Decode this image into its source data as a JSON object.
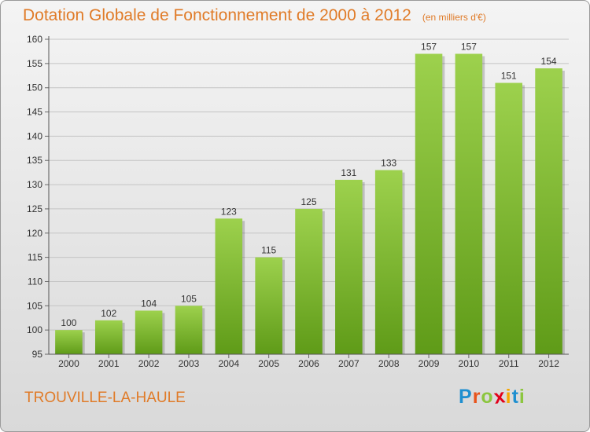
{
  "header": {
    "title": "Dotation Globale de Fonctionnement de 2000 à 2012",
    "unit": "(en milliers d'€)"
  },
  "footer": {
    "place": "TROUVILLE-LA-HAULE",
    "logo": "Proxiti",
    "logo_letters": [
      {
        "ch": "P",
        "color": "#1e8fd0"
      },
      {
        "ch": "r",
        "color": "#e8541c"
      },
      {
        "ch": "o",
        "color": "#8cc63f"
      },
      {
        "ch": "x",
        "color": "#e2001a"
      },
      {
        "ch": "i",
        "color": "#f7a600"
      },
      {
        "ch": "t",
        "color": "#1e8fd0"
      },
      {
        "ch": "i",
        "color": "#8cc63f"
      }
    ]
  },
  "colors": {
    "accent": "#e07b28",
    "bar_top": "#9dd14d",
    "bar_bottom": "#5f9b18",
    "grid": "#c4c4c4"
  },
  "chart_data": {
    "type": "bar",
    "title": "Dotation Globale de Fonctionnement de 2000 à 2012",
    "subtitle": "(en milliers d'€)",
    "categories": [
      "2000",
      "2001",
      "2002",
      "2003",
      "2004",
      "2005",
      "2006",
      "2007",
      "2008",
      "2009",
      "2010",
      "2011",
      "2012"
    ],
    "values": [
      100,
      102,
      104,
      105,
      123,
      115,
      125,
      131,
      133,
      157,
      157,
      151,
      154
    ],
    "ylim": [
      95,
      160
    ],
    "yticks": [
      95,
      100,
      105,
      110,
      115,
      120,
      125,
      130,
      135,
      140,
      145,
      150,
      155,
      160
    ],
    "grid": true,
    "legend": "none"
  }
}
